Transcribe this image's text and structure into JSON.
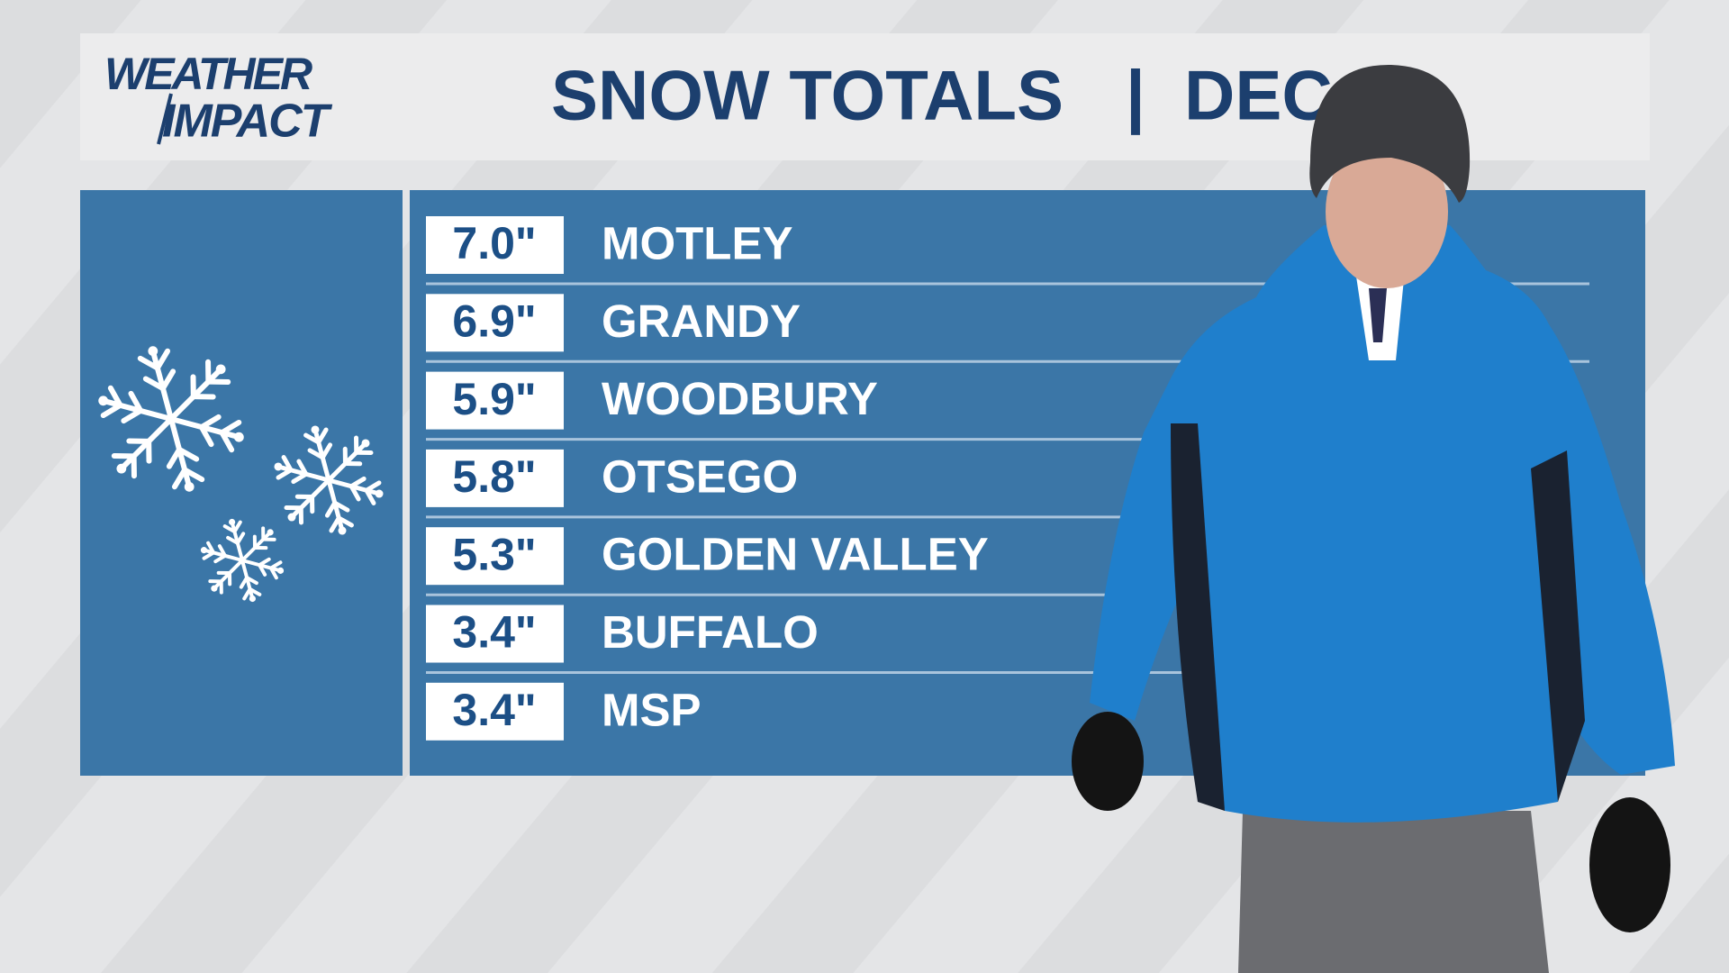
{
  "logo": {
    "line1": "WEATHER",
    "line2": "IMPACT"
  },
  "header": {
    "title": "SNOW TOTALS",
    "separator": "|",
    "period": "DEC"
  },
  "table": {
    "rows": [
      [
        "7.0\"",
        "MOTLEY"
      ],
      [
        "6.9\"",
        "GRANDY"
      ],
      [
        "5.9\"",
        "WOODBURY"
      ],
      [
        "5.8\"",
        "OTSEGO"
      ],
      [
        "5.3\"",
        "GOLDEN VALLEY"
      ],
      [
        "3.4\"",
        "BUFFALO"
      ],
      [
        "3.4\"",
        "MSP"
      ]
    ]
  }
}
